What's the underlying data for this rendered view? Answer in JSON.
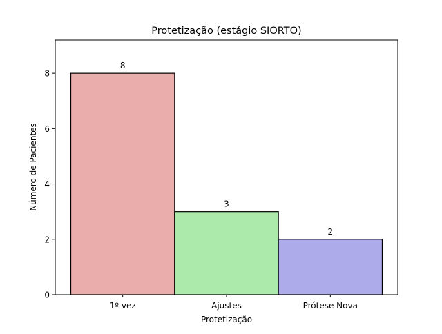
{
  "chart_data": {
    "type": "bar",
    "title": "Protetização (estágio SIORTO)",
    "xlabel": "Protetização",
    "ylabel": "Número de Pacientes",
    "categories": [
      "1º vez",
      "Ajustes",
      "Prótese Nova"
    ],
    "values": [
      8,
      3,
      2
    ],
    "data_labels": [
      "8",
      "3",
      "2"
    ],
    "colors": [
      "#eaadab",
      "#abeaab",
      "#adabea"
    ],
    "edge_color": "#000000",
    "ylim": [
      0,
      9.2
    ],
    "yticks": [
      0,
      2,
      4,
      6,
      8
    ],
    "grid": false,
    "legend": "none"
  }
}
